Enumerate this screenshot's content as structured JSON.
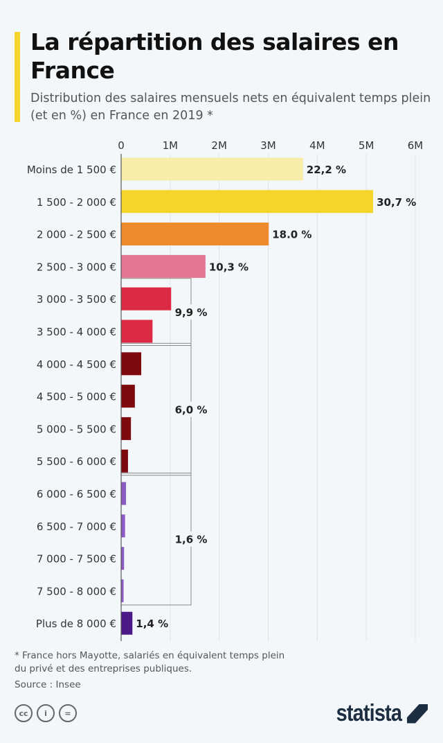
{
  "header": {
    "title": "La répartition des salaires en France",
    "subtitle": "Distribution des salaires mensuels nets en équivalent temps plein (et en %) en France en 2019 *"
  },
  "chart_data": {
    "type": "bar",
    "orientation": "horizontal",
    "title": "La répartition des salaires en France",
    "subtitle": "Distribution des salaires mensuels nets en équivalent temps plein (et en %) en France en 2019 *",
    "xlim": [
      0,
      6000000
    ],
    "x_ticks": [
      "0",
      "1M",
      "2M",
      "3M",
      "4M",
      "5M",
      "6M"
    ],
    "grid": true,
    "categories": [
      "Moins de 1 500 €",
      "1 500 - 2 000 €",
      "2 000 - 2 500 €",
      "2 500 - 3 000 €",
      "3 000 - 3 500 €",
      "3 500 - 4 000 €",
      "4 000 - 4 500 €",
      "4 500 - 5 000 €",
      "5 000 - 5 500 €",
      "5 500 - 6 000 €",
      "6 000 - 6 500 €",
      "6 500 - 7 000 €",
      "7 000 - 7 500 €",
      "7 500 - 8 000 €",
      "Plus de 8 000 €"
    ],
    "values": [
      3710000,
      5140000,
      3010000,
      1720000,
      1020000,
      640000,
      410000,
      280000,
      200000,
      140000,
      100000,
      80000,
      60000,
      50000,
      230000
    ],
    "colors": [
      "#f7eda8",
      "#f5d52a",
      "#ef8a2c",
      "#e57590",
      "#dc2a45",
      "#dc2a45",
      "#7e0a0e",
      "#7e0a0e",
      "#7e0a0e",
      "#7e0a0e",
      "#8c5bc4",
      "#8c5bc4",
      "#8c5bc4",
      "#8c5bc4",
      "#4c1a86"
    ],
    "data_labels": [
      {
        "index": 0,
        "label": "22,2 %"
      },
      {
        "index": 1,
        "label": "30,7 %"
      },
      {
        "index": 2,
        "label": "18.0 %"
      },
      {
        "index": 3,
        "label": "10,3 %"
      },
      {
        "index": 14,
        "label": "1,4 %"
      }
    ],
    "group_labels": [
      {
        "from": 4,
        "to": 5,
        "label": "9,9 %"
      },
      {
        "from": 6,
        "to": 9,
        "label": "6,0 %"
      },
      {
        "from": 10,
        "to": 13,
        "label": "1,6 %"
      }
    ]
  },
  "footer": {
    "note": "* France hors Mayotte, salariés en équivalent temps plein du privé et des entreprises publiques.",
    "source": "Source : Insee",
    "license_icons": [
      "cc",
      "by",
      "nd"
    ],
    "logo": "statista"
  }
}
